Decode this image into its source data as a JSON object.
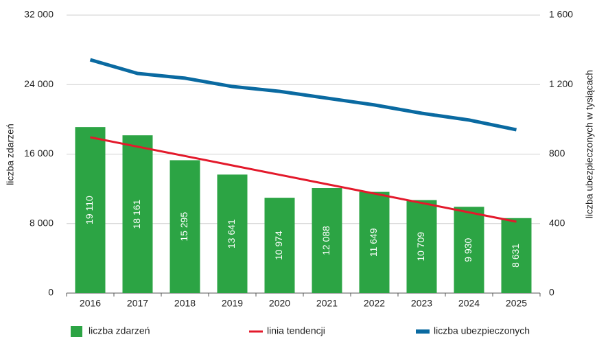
{
  "chart_data": {
    "type": "bar",
    "categories": [
      "2016",
      "2017",
      "2018",
      "2019",
      "2020",
      "2021",
      "2022",
      "2023",
      "2024",
      "2025"
    ],
    "ylabel": "liczba zdarzeń",
    "y2label": "liczba ubezpieczonych w tysiącach",
    "ylim": [
      0,
      32000
    ],
    "yticks": [
      0,
      {
        "value": 8000,
        "label": "8 000"
      },
      {
        "value": 16000,
        "label": "16 000"
      },
      {
        "value": 24000,
        "label": "24 000"
      },
      {
        "value": 32000,
        "label": "32 000"
      }
    ],
    "y2lim": [
      0,
      1600
    ],
    "y2ticks": [
      0,
      400,
      800,
      {
        "value": 1200,
        "label": "1 200"
      },
      {
        "value": 1600,
        "label": "1 600"
      }
    ],
    "grid": true,
    "legend": "bottom",
    "series": [
      {
        "name": "liczba zdarzeń",
        "type": "bar",
        "color": "#2ca444",
        "values": [
          19110,
          18161,
          15295,
          13641,
          10974,
          12088,
          11649,
          10709,
          9930,
          8631
        ],
        "value_labels": [
          "19 110",
          "18 161",
          "15 295",
          "13 641",
          "10 974",
          "12 088",
          "11 649",
          "10 709",
          "9 930",
          "8 631"
        ]
      },
      {
        "name": "linia tendencji",
        "type": "line",
        "color": "#e3192b",
        "values": [
          17936,
          16856,
          15776,
          14696,
          13616,
          12536,
          11456,
          10376,
          9296,
          8216
        ]
      },
      {
        "name": "liczba ubezpieczonych",
        "type": "line",
        "axis": "y2",
        "color": "#0a6aa1",
        "values": [
          1343,
          1264,
          1237,
          1189,
          1161,
          1122,
          1083,
          1035,
          996,
          940
        ]
      }
    ]
  }
}
